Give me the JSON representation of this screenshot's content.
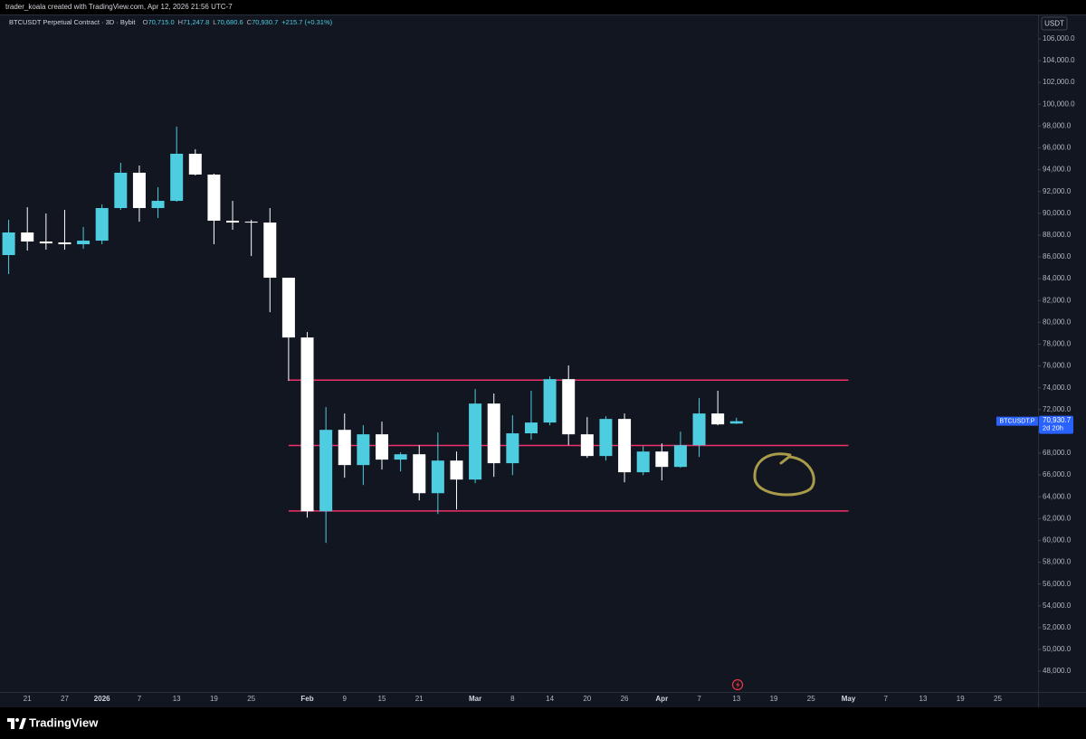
{
  "header": {
    "attribution": "trader_koala created with TradingView.com, Apr 12, 2026 21:56 UTC-7",
    "symbol": "BTCUSDT Perpetual Contract · 3D · Bybit",
    "ohlc": [
      {
        "label": "O",
        "value": "70,715.0"
      },
      {
        "label": "H",
        "value": "71,247.8"
      },
      {
        "label": "L",
        "value": "70,680.6"
      },
      {
        "label": "C",
        "value": "70,930.7"
      }
    ],
    "change": "+215.7 (+0.31%)"
  },
  "footer": {
    "brand": "TradingView"
  },
  "chart_data": {
    "type": "candlestick",
    "currency": "USDT",
    "categories": [
      null,
      "21",
      null,
      "27",
      null,
      "2026",
      null,
      "7",
      null,
      "13",
      null,
      "19",
      null,
      "25",
      null,
      null,
      "Feb",
      null,
      "9",
      null,
      "15",
      null,
      "21",
      null,
      null,
      "Mar",
      null,
      "8",
      null,
      "14",
      null,
      "20",
      null,
      "26",
      null,
      "Apr",
      null,
      "7",
      null,
      "13",
      null,
      "19",
      null,
      "25",
      null,
      "May",
      null,
      "7",
      null,
      "13",
      null,
      "19",
      null,
      "25"
    ],
    "open": [
      86170,
      88240,
      87410,
      87330,
      87160,
      87490,
      90480,
      93720,
      90480,
      91140,
      95460,
      93550,
      89320,
      89230,
      89150,
      84090,
      78610,
      62670,
      70140,
      66910,
      69730,
      67410,
      67900,
      64330,
      67320,
      65580,
      72550,
      67080,
      69820,
      70810,
      74790,
      69730,
      67740,
      71140,
      66250,
      68150,
      66740,
      68730,
      71640,
      70715,
      null,
      null,
      null,
      null,
      null,
      null,
      null,
      null,
      null,
      null,
      null,
      null,
      null,
      null
    ],
    "high": [
      89400,
      90560,
      89980,
      90310,
      88740,
      90810,
      94630,
      94380,
      92390,
      97950,
      95870,
      93630,
      91140,
      89400,
      90480,
      84090,
      79110,
      72220,
      71640,
      70560,
      70890,
      68070,
      68730,
      69900,
      68150,
      73880,
      73470,
      71470,
      73720,
      75040,
      76040,
      71310,
      71390,
      71640,
      68650,
      68900,
      69980,
      73050,
      73720,
      71247.8,
      null,
      null,
      null,
      null,
      null,
      null,
      null,
      null,
      null,
      null,
      null,
      null,
      null,
      null
    ],
    "low": [
      84420,
      86580,
      86660,
      86660,
      86740,
      87160,
      90310,
      89230,
      89570,
      91060,
      93470,
      87160,
      88490,
      86080,
      80930,
      74630,
      62090,
      59770,
      65750,
      65080,
      66500,
      66330,
      63670,
      62420,
      62840,
      65250,
      65830,
      65990,
      69230,
      70560,
      68730,
      67570,
      67320,
      65330,
      65990,
      65500,
      66660,
      67650,
      70560,
      70680.6,
      null,
      null,
      null,
      null,
      null,
      null,
      null,
      null,
      null,
      null,
      null,
      null,
      null,
      null
    ],
    "close": [
      88240,
      87410,
      87240,
      87160,
      87490,
      90480,
      93720,
      90480,
      91140,
      95460,
      93550,
      89320,
      89150,
      89150,
      84090,
      78610,
      62670,
      70140,
      66910,
      69730,
      67410,
      67900,
      64330,
      67320,
      65580,
      72550,
      67080,
      69820,
      70810,
      74790,
      69730,
      67740,
      71140,
      66250,
      68150,
      66740,
      68730,
      71640,
      70640,
      70930.7,
      null,
      null,
      null,
      null,
      null,
      null,
      null,
      null,
      null,
      null,
      null,
      null,
      null,
      null
    ],
    "up_color": "#4fcde0",
    "down_color": "#ffffff",
    "hlines": [
      74700,
      68700,
      62700
    ],
    "hline_color": "#f0306a",
    "last_price": {
      "symbol": "BTCUSDT.P",
      "label": "70,930.7",
      "countdown": "2d 20h",
      "color": "#2962ff"
    },
    "ylim": [
      46100,
      108150
    ],
    "yticks": [
      {
        "value": 48000,
        "label": "48,000.0"
      },
      {
        "value": 50000,
        "label": "50,000.0"
      },
      {
        "value": 52000,
        "label": "52,000.0"
      },
      {
        "value": 54000,
        "label": "54,000.0"
      },
      {
        "value": 56000,
        "label": "56,000.0"
      },
      {
        "value": 58000,
        "label": "58,000.0"
      },
      {
        "value": 60000,
        "label": "60,000.0"
      },
      {
        "value": 62000,
        "label": "62,000.0"
      },
      {
        "value": 64000,
        "label": "64,000.0"
      },
      {
        "value": 66000,
        "label": "66,000.0"
      },
      {
        "value": 68000,
        "label": "68,000.0"
      },
      {
        "value": 70000,
        "label": "70,000.0"
      },
      {
        "value": 72000,
        "label": "72,000.0"
      },
      {
        "value": 74000,
        "label": "74,000.0"
      },
      {
        "value": 76000,
        "label": "76,000.0"
      },
      {
        "value": 78000,
        "label": "78,000.0"
      },
      {
        "value": 80000,
        "label": "80,000.0"
      },
      {
        "value": 82000,
        "label": "82,000.0"
      },
      {
        "value": 84000,
        "label": "84,000.0"
      },
      {
        "value": 86000,
        "label": "86,000.0"
      },
      {
        "value": 88000,
        "label": "88,000.0"
      },
      {
        "value": 90000,
        "label": "90,000.0"
      },
      {
        "value": 92000,
        "label": "92,000.0"
      },
      {
        "value": 94000,
        "label": "94,000.0"
      },
      {
        "value": 96000,
        "label": "96,000.0"
      },
      {
        "value": 98000,
        "label": "98,000.0"
      },
      {
        "value": 100000,
        "label": "100,000.0"
      },
      {
        "value": 102000,
        "label": "102,000.0"
      },
      {
        "value": 104000,
        "label": "104,000.0"
      },
      {
        "value": 106000,
        "label": "106,000.0"
      }
    ],
    "grid": false
  }
}
